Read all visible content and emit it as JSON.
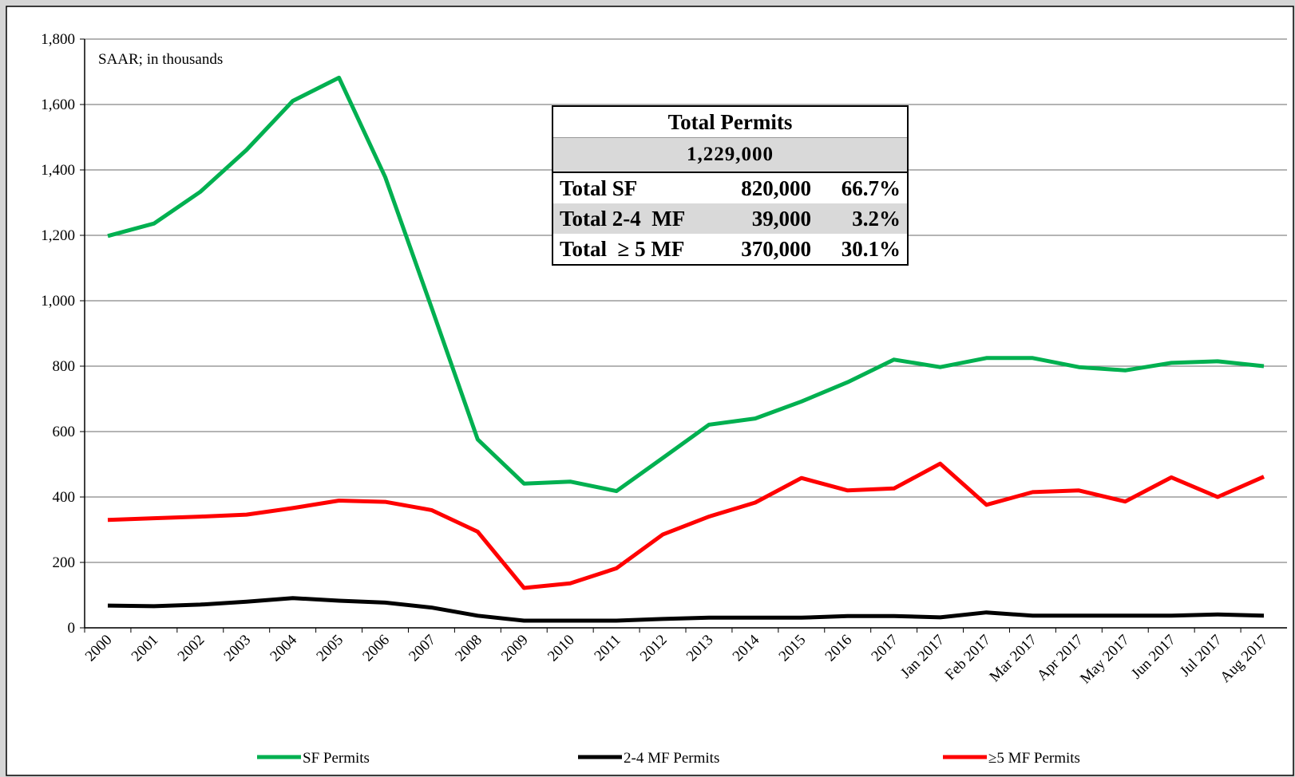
{
  "chart_data": {
    "type": "line",
    "annotation": "SAAR; in thousands",
    "categories": [
      "2000",
      "2001",
      "2002",
      "2003",
      "2004",
      "2005",
      "2006",
      "2007",
      "2008",
      "2009",
      "2010",
      "2011",
      "2012",
      "2013",
      "2014",
      "2015",
      "2016",
      "2017",
      "Jan 2017",
      "Feb 2017",
      "Mar 2017",
      "Apr 2017",
      "May 2017",
      "Jun 2017",
      "Jul 2017",
      "Aug 2017"
    ],
    "series": [
      {
        "name": "SF Permits",
        "color": "#00b050",
        "values": [
          1198,
          1236,
          1333,
          1461,
          1611,
          1682,
          1378,
          980,
          576,
          441,
          447,
          418,
          519,
          621,
          640,
          692,
          751,
          820,
          797,
          825,
          825,
          797,
          787,
          810,
          815,
          800
        ]
      },
      {
        "name": "2-4 MF Permits",
        "color": "#000000",
        "values": [
          68,
          66,
          71,
          80,
          91,
          83,
          77,
          62,
          37,
          22,
          22,
          22,
          27,
          31,
          31,
          31,
          36,
          36,
          32,
          47,
          37,
          37,
          37,
          37,
          41,
          37
        ]
      },
      {
        "name": "≥5 MF Permits",
        "color": "#ff0000",
        "values": [
          330,
          335,
          340,
          346,
          366,
          389,
          385,
          360,
          294,
          122,
          136,
          182,
          285,
          340,
          383,
          458,
          420,
          426,
          502,
          376,
          415,
          420,
          386,
          460,
          400,
          462
        ]
      }
    ],
    "ylim": [
      0,
      1800
    ],
    "yticks": [
      0,
      200,
      400,
      600,
      800,
      {
        "value": 1000,
        "label": "1,000"
      },
      {
        "value": 1200,
        "label": "1,200"
      },
      {
        "value": 1400,
        "label": "1,400"
      },
      {
        "value": 1600,
        "label": "1,600"
      },
      {
        "value": 1800,
        "label": "1,800"
      }
    ],
    "grid": true,
    "legend": "bottom",
    "summary_table": {
      "title": "Total Permits",
      "total": "1,229,000",
      "rows": [
        [
          "Total SF",
          "820,000",
          "66.7%"
        ],
        [
          "Total 2-4  MF",
          "39,000",
          "3.2%"
        ],
        [
          "Total  ≥ 5 MF",
          "370,000",
          "30.1%"
        ]
      ]
    }
  }
}
